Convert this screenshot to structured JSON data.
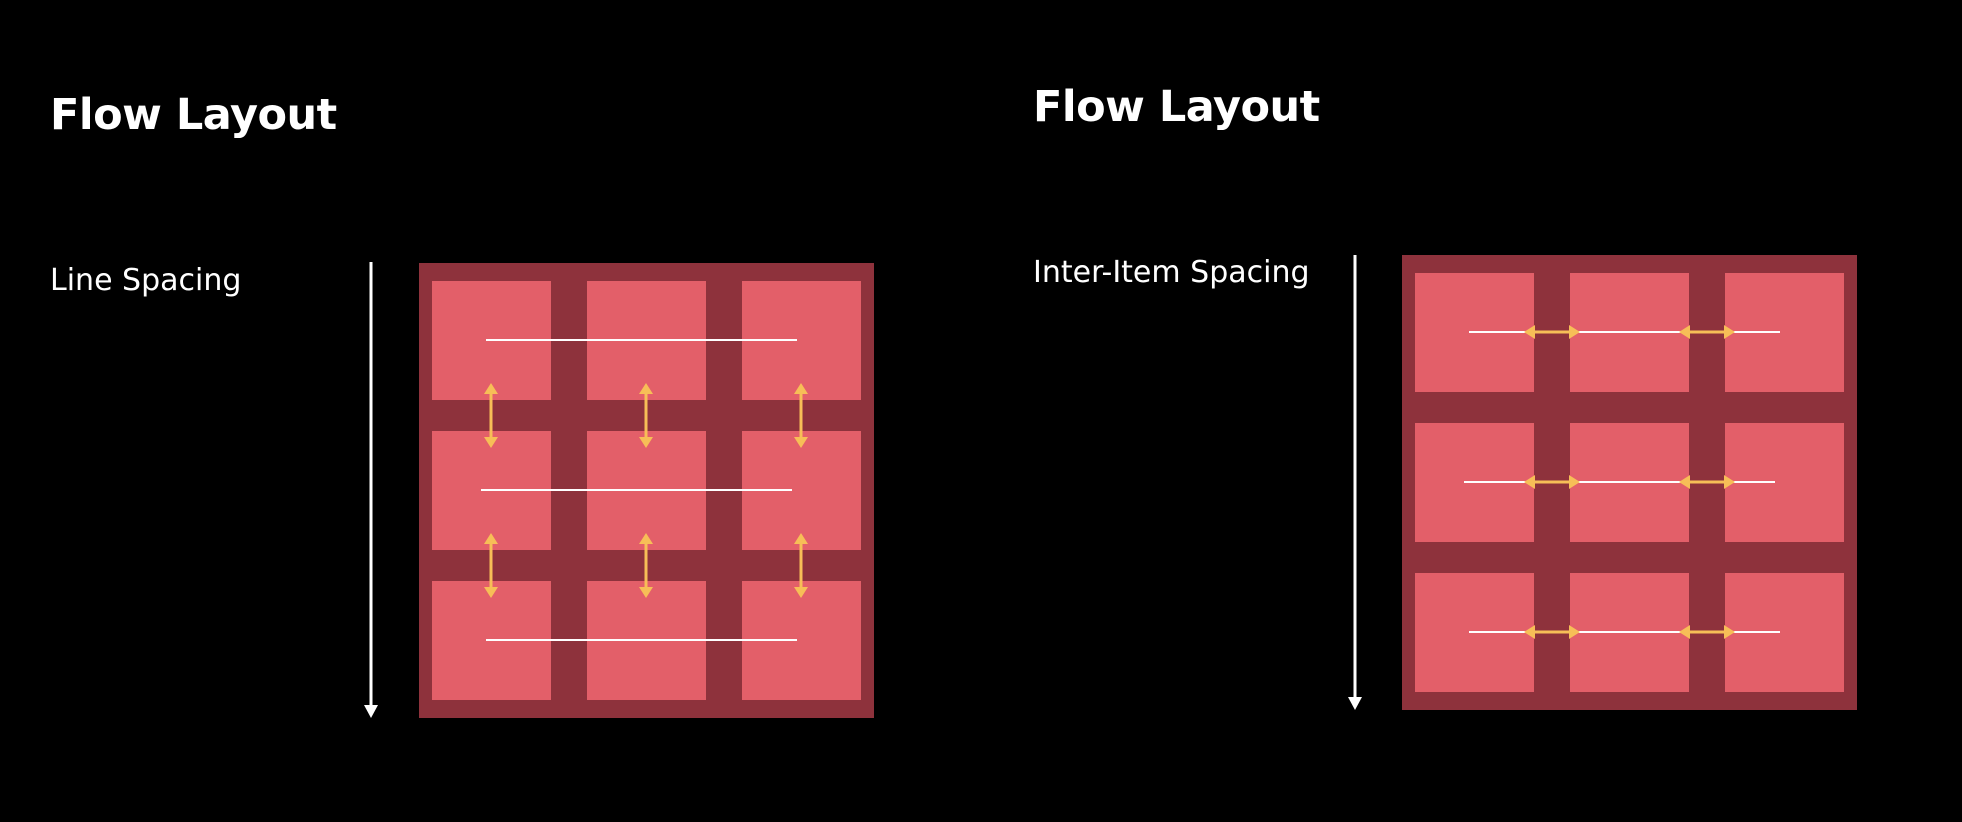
{
  "panels": [
    {
      "title": "Flow Layout",
      "subtitle": "Line Spacing",
      "spacing_type": "line"
    },
    {
      "title": "Flow Layout",
      "subtitle": "Inter-Item Spacing",
      "spacing_type": "inter-item"
    }
  ],
  "grid": {
    "rows": 3,
    "columns": 3
  },
  "colors": {
    "background": "#000000",
    "container": "#8E323C",
    "cell": "#E35F69",
    "arrow": "#F7BE57",
    "line": "#FFFFFF"
  }
}
